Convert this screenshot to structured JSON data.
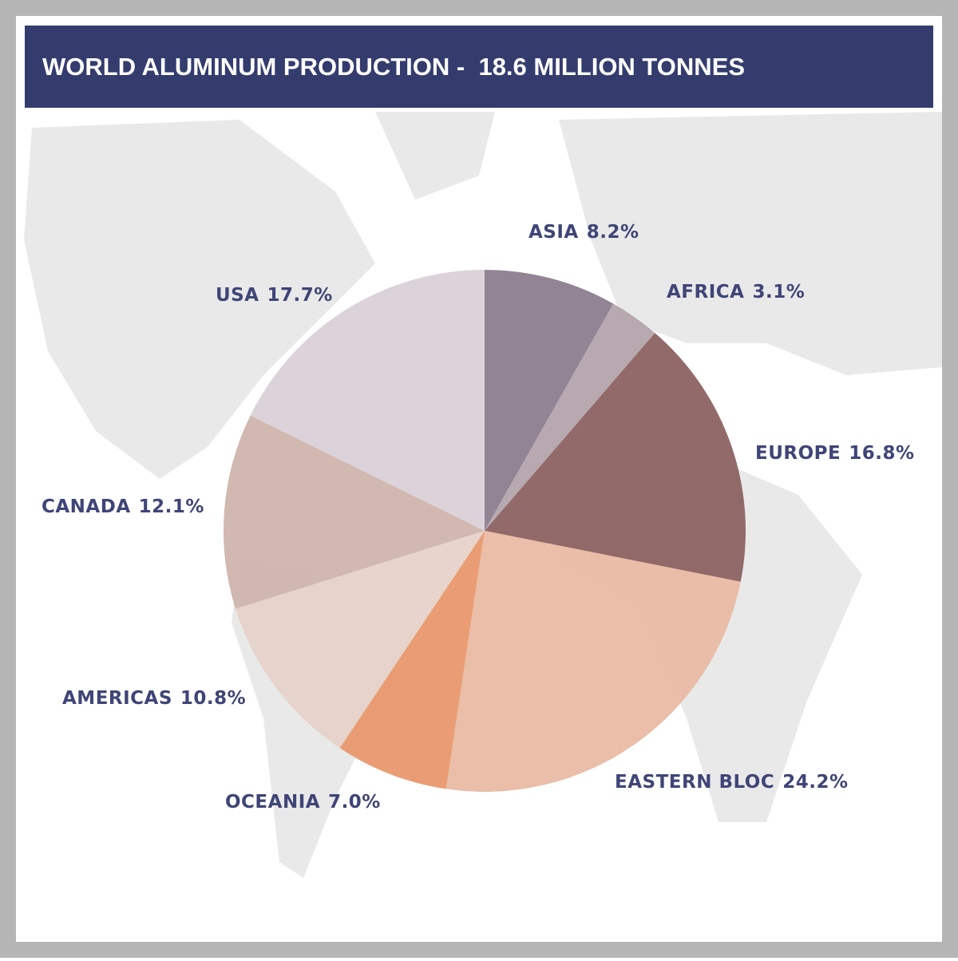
{
  "chart_data": {
    "type": "pie",
    "title": "WORLD ALUMINUM PRODUCTION -  18.6 MILLION TONNES",
    "categories": [
      "ASIA",
      "AFRICA",
      "EUROPE",
      "EASTERN BLOC",
      "OCEANIA",
      "AMERICAS",
      "CANADA",
      "USA"
    ],
    "values": [
      8.2,
      3.1,
      16.8,
      24.2,
      7.0,
      10.8,
      12.1,
      17.7
    ],
    "value_labels": [
      "8.2%",
      "3.1%",
      "16.8%",
      "24.2%",
      "7.0%",
      "10.8%",
      "12.1%",
      "17.7%"
    ],
    "colors": [
      "#8c7d8e",
      "#b3a4ab",
      "#8d6262",
      "#e9bba3",
      "#e9986d",
      "#e6d2c9",
      "#cfb4ad",
      "#d9d1d7"
    ]
  }
}
